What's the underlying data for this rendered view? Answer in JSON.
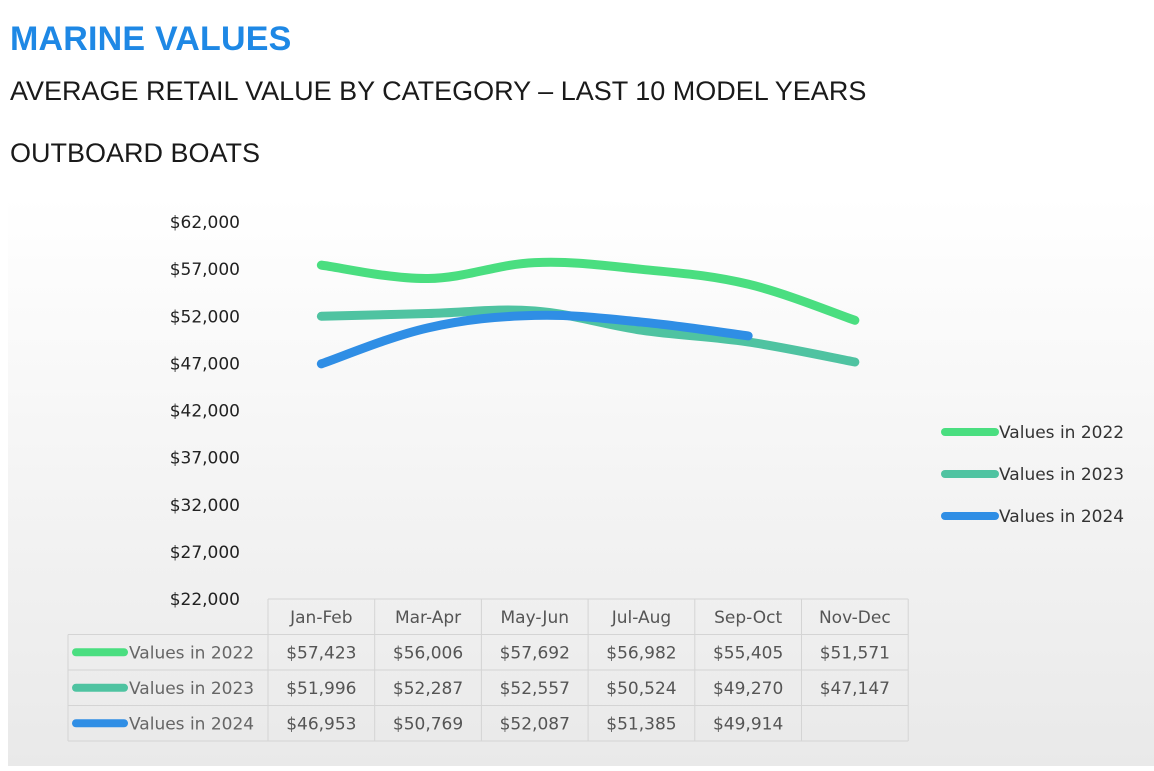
{
  "header": {
    "brand": "MARINE VALUES",
    "subtitle": "AVERAGE RETAIL VALUE BY CATEGORY – LAST 10 MODEL YEARS",
    "category": "OUTBOARD BOATS"
  },
  "chart_data": {
    "type": "line",
    "title": "OUTBOARD BOATS",
    "xlabel": "",
    "ylabel": "",
    "categories": [
      "Jan-Feb",
      "Mar-Apr",
      "May-Jun",
      "Jul-Aug",
      "Sep-Oct",
      "Nov-Dec"
    ],
    "ylim": [
      22000,
      62000
    ],
    "yticks": [
      22000,
      27000,
      32000,
      37000,
      42000,
      47000,
      52000,
      57000,
      62000
    ],
    "ytick_labels": [
      "$22,000",
      "$27,000",
      "$32,000",
      "$37,000",
      "$42,000",
      "$47,000",
      "$52,000",
      "$57,000",
      "$62,000"
    ],
    "legend_position": "right",
    "data_table": true,
    "series": [
      {
        "name": "Values in 2022",
        "color": "#4ade80",
        "values": [
          57423,
          56006,
          57692,
          56982,
          55405,
          51571
        ],
        "labels": [
          "$57,423",
          "$56,006",
          "$57,692",
          "$56,982",
          "$55,405",
          "$51,571"
        ]
      },
      {
        "name": "Values in 2023",
        "color": "#4fc3a1",
        "values": [
          51996,
          52287,
          52557,
          50524,
          49270,
          47147
        ],
        "labels": [
          "$51,996",
          "$52,287",
          "$52,557",
          "$50,524",
          "$49,270",
          "$47,147"
        ]
      },
      {
        "name": "Values in 2024",
        "color": "#2f8ee5",
        "values": [
          46953,
          50769,
          52087,
          51385,
          49914,
          null
        ],
        "labels": [
          "$46,953",
          "$50,769",
          "$52,087",
          "$51,385",
          "$49,914",
          ""
        ]
      }
    ]
  }
}
